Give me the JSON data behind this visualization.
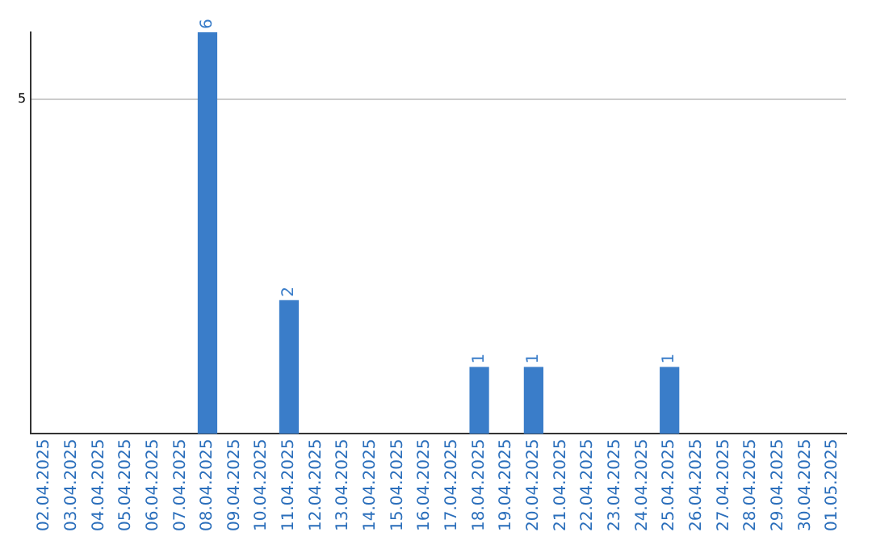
{
  "chart_data": {
    "type": "bar",
    "categories": [
      "02.04.2025",
      "03.04.2025",
      "04.04.2025",
      "05.04.2025",
      "06.04.2025",
      "07.04.2025",
      "08.04.2025",
      "09.04.2025",
      "10.04.2025",
      "11.04.2025",
      "12.04.2025",
      "13.04.2025",
      "14.04.2025",
      "15.04.2025",
      "16.04.2025",
      "17.04.2025",
      "18.04.2025",
      "19.04.2025",
      "20.04.2025",
      "21.04.2025",
      "22.04.2025",
      "23.04.2025",
      "24.04.2025",
      "25.04.2025",
      "26.04.2025",
      "27.04.2025",
      "28.04.2025",
      "29.04.2025",
      "30.04.2025",
      "01.05.2025"
    ],
    "values": [
      0,
      0,
      0,
      0,
      0,
      0,
      6,
      0,
      0,
      2,
      0,
      0,
      0,
      0,
      0,
      0,
      1,
      0,
      1,
      0,
      0,
      0,
      0,
      1,
      0,
      0,
      0,
      0,
      0,
      0
    ],
    "value_labels": [
      null,
      null,
      null,
      null,
      null,
      null,
      "6",
      null,
      null,
      "2",
      null,
      null,
      null,
      null,
      null,
      null,
      "1",
      null,
      "1",
      null,
      null,
      null,
      null,
      "1",
      null,
      null,
      null,
      null,
      null,
      null
    ],
    "color": "#3a7dc9",
    "ylim": [
      0,
      6
    ],
    "yticks": [
      5
    ],
    "grid": "y",
    "legend": false
  }
}
